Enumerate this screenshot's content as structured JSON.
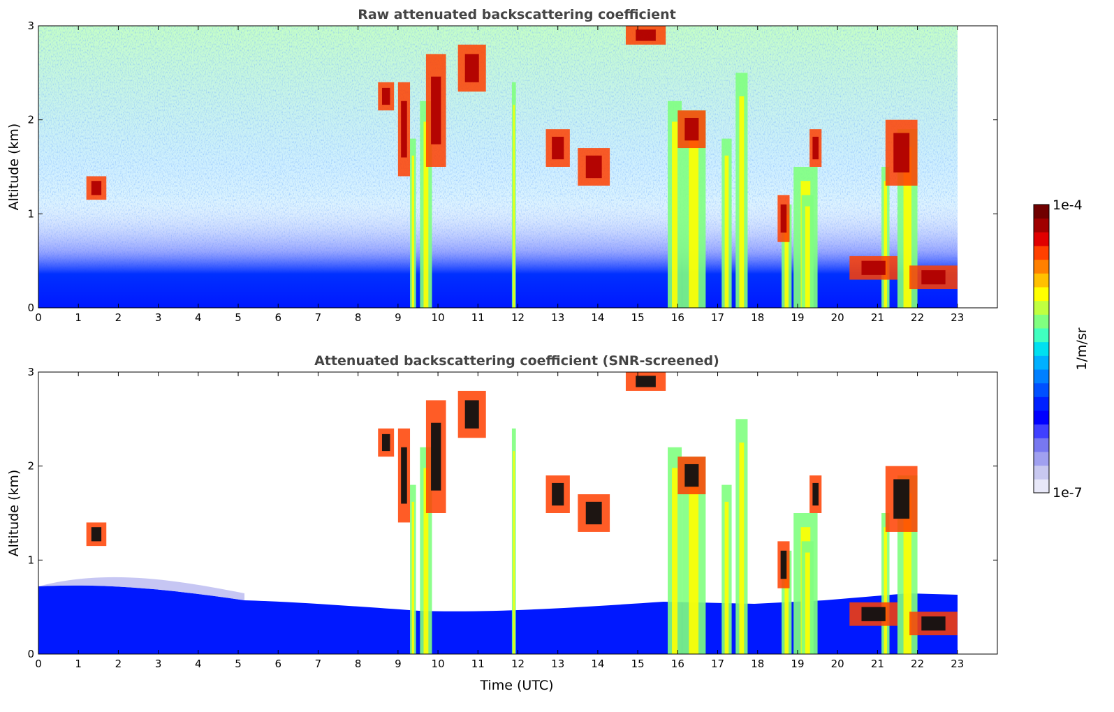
{
  "chart_data": [
    {
      "type": "heatmap",
      "title": "Raw attenuated backscattering coefficient",
      "xlabel": "",
      "ylabel": "Altitude (km)",
      "x_ticks": [
        "0",
        "1",
        "2",
        "3",
        "4",
        "5",
        "6",
        "7",
        "8",
        "9",
        "10",
        "11",
        "12",
        "13",
        "14",
        "15",
        "16",
        "17",
        "18",
        "19",
        "20",
        "21",
        "22",
        "23"
      ],
      "y_ticks": [
        "0",
        "1",
        "2",
        "3"
      ],
      "xlim": [
        0,
        24
      ],
      "ylim": [
        0,
        3
      ],
      "grid": false,
      "data_end_hour": 23
    },
    {
      "type": "heatmap",
      "title": "Attenuated backscattering coefficient (SNR-screened)",
      "xlabel": "Time (UTC)",
      "ylabel": "Altitude (km)",
      "x_ticks": [
        "0",
        "1",
        "2",
        "3",
        "4",
        "5",
        "6",
        "7",
        "8",
        "9",
        "10",
        "11",
        "12",
        "13",
        "14",
        "15",
        "16",
        "17",
        "18",
        "19",
        "20",
        "21",
        "22",
        "23"
      ],
      "y_ticks": [
        "0",
        "1",
        "2",
        "3"
      ],
      "xlim": [
        0,
        24
      ],
      "ylim": [
        0,
        3
      ],
      "grid": false,
      "data_end_hour": 23
    }
  ],
  "colorbar": {
    "label": "1/m/sr",
    "max_label": "1e-4",
    "min_label": "1e-7",
    "colors": [
      "#e8e8f8",
      "#c8c8f0",
      "#a0a0f0",
      "#7878f0",
      "#4040ff",
      "#0000ff",
      "#0020ff",
      "#0050ff",
      "#0080ff",
      "#00b0ff",
      "#00e0f0",
      "#40ffc0",
      "#80ff80",
      "#c0ff40",
      "#ffff00",
      "#ffc000",
      "#ff8000",
      "#ff4000",
      "#e00000",
      "#a00000",
      "#700000"
    ]
  },
  "palette": {
    "pbl": "#0018ff",
    "cloud_core": "#b00000",
    "attenuated": "#111111"
  }
}
